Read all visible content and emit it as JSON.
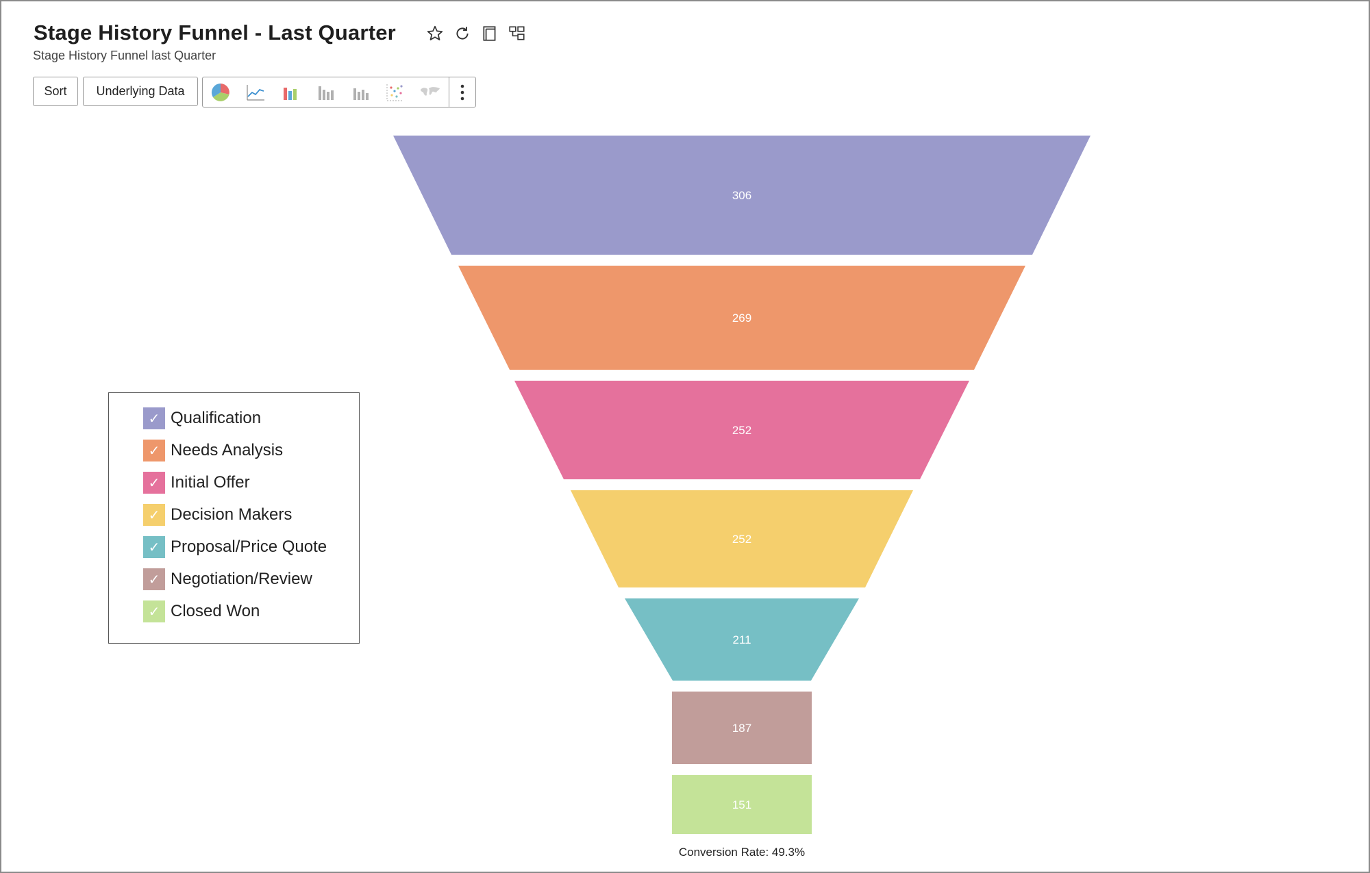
{
  "header": {
    "title": "Stage History Funnel - Last Quarter",
    "subtitle": "Stage History Funnel last Quarter"
  },
  "toolbar": {
    "sort_label": "Sort",
    "underlying_label": "Underlying Data"
  },
  "chart_data": {
    "type": "funnel",
    "categories": [
      "Qualification",
      "Needs Analysis",
      "Initial Offer",
      "Decision Makers",
      "Proposal/Price Quote",
      "Negotiation/Review",
      "Closed Won"
    ],
    "values": [
      306,
      269,
      252,
      252,
      211,
      187,
      151
    ],
    "colors": [
      "#9a9acb",
      "#ee976b",
      "#e5719c",
      "#f5cf6d",
      "#76bfc5",
      "#c19d9a",
      "#c4e398"
    ],
    "legend_placement": "left",
    "footer": "Conversion Rate: 49.3%"
  }
}
